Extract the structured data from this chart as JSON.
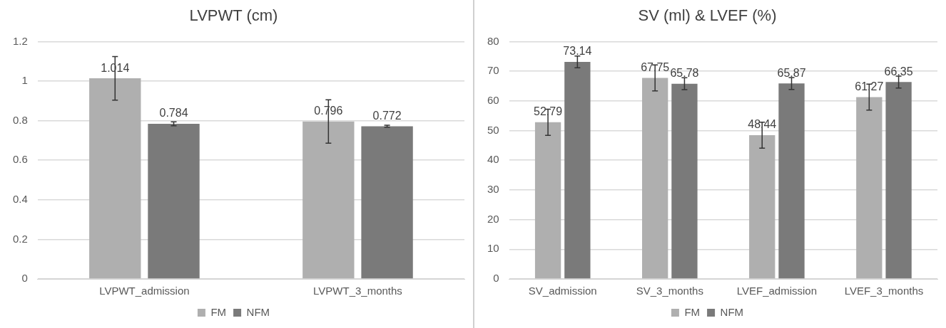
{
  "chart_data": [
    {
      "type": "bar",
      "title": "LVPWT (cm)",
      "categories": [
        "LVPWT_admission",
        "LVPWT_3_months"
      ],
      "series": [
        {
          "name": "FM",
          "color": "#afafaf",
          "values": [
            1.014,
            0.796
          ],
          "errors": [
            0.11,
            0.11
          ]
        },
        {
          "name": "NFM",
          "color": "#7a7a7a",
          "values": [
            0.784,
            0.772
          ],
          "errors": [
            0.01,
            0.005
          ]
        }
      ],
      "ylim": [
        0,
        1.2
      ],
      "yticks": [
        0,
        0.2,
        0.4,
        0.6,
        0.8,
        1,
        1.2
      ],
      "grid": "y",
      "legend": "bottom",
      "data_labels": true
    },
    {
      "type": "bar",
      "title": "SV (ml) & LVEF (%)",
      "categories": [
        "SV_admission",
        "SV_3_months",
        "LVEF_admission",
        "LVEF_3_months"
      ],
      "series": [
        {
          "name": "FM",
          "color": "#afafaf",
          "values": [
            52.79,
            67.75,
            48.44,
            61.27
          ],
          "errors": [
            4.4,
            4.4,
            4.4,
            4.4
          ]
        },
        {
          "name": "NFM",
          "color": "#7a7a7a",
          "values": [
            73.14,
            65.78,
            65.87,
            66.35
          ],
          "errors": [
            2,
            2,
            2,
            2
          ]
        }
      ],
      "ylim": [
        0,
        80
      ],
      "yticks": [
        0,
        10,
        20,
        30,
        40,
        50,
        60,
        70,
        80
      ],
      "grid": "y",
      "legend": "bottom",
      "data_labels": true
    }
  ]
}
